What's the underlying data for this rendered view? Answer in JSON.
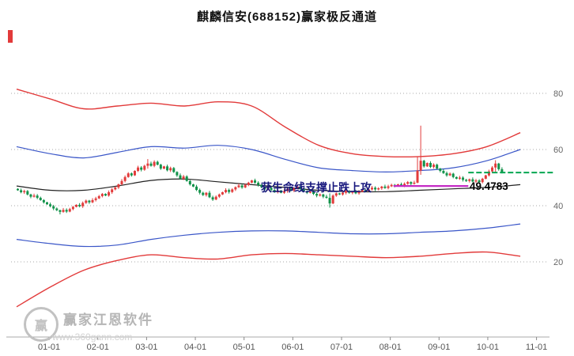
{
  "title": "麒麟信安(688152)赢家极反通道",
  "annotation": {
    "text": "获生命线支撑止跌上攻",
    "price_label": "49.4783"
  },
  "watermark": {
    "logo_char": "赢",
    "brand": "赢家江恩软件",
    "url": "www.360gann.com"
  },
  "axis": {
    "y_ticks": [
      80,
      60,
      40,
      20
    ],
    "x_ticks": [
      {
        "label": "01-01",
        "idx": 10
      },
      {
        "label": "02-01",
        "idx": 25
      },
      {
        "label": "03-01",
        "idx": 40
      },
      {
        "label": "04-01",
        "idx": 55
      },
      {
        "label": "05-01",
        "idx": 70
      },
      {
        "label": "06-01",
        "idx": 85
      },
      {
        "label": "07-01",
        "idx": 100
      },
      {
        "label": "08-01",
        "idx": 115
      },
      {
        "label": "09-01",
        "idx": 130
      },
      {
        "label": "10-01",
        "idx": 145
      },
      {
        "label": "11-01",
        "idx": 160
      }
    ]
  },
  "chart_data": {
    "type": "candlestick",
    "symbol": "麒麟信安",
    "code": "688152",
    "channel_name": "赢家极反通道",
    "title": "麒麟信安(688152)赢家极反通道",
    "ylim": [
      0,
      90
    ],
    "grid": "horizontal-dotted",
    "colors": {
      "up_candle": "#e23b3b",
      "down_candle": "#12924a",
      "outer_channel": "#e23a3a",
      "inner_channel": "#3a56c8",
      "lifeline": "#222222",
      "support_line": "#c52bc5",
      "target_line": "#00a651"
    },
    "closes": [
      45.5,
      44.8,
      45.2,
      44.0,
      43.2,
      43.6,
      42.8,
      42.0,
      41.2,
      40.5,
      39.8,
      39.0,
      38.4,
      37.8,
      38.5,
      37.9,
      38.8,
      39.6,
      40.3,
      39.8,
      41.0,
      41.8,
      41.2,
      42.0,
      42.6,
      43.4,
      44.2,
      43.6,
      44.8,
      45.8,
      46.5,
      47.6,
      48.8,
      50.2,
      51.5,
      50.8,
      52.4,
      53.6,
      52.8,
      54.2,
      55.0,
      54.2,
      55.6,
      54.6,
      53.2,
      54.0,
      52.6,
      53.4,
      52.0,
      50.8,
      49.6,
      50.4,
      48.8,
      47.6,
      46.8,
      45.6,
      44.6,
      43.8,
      44.6,
      43.0,
      42.2,
      43.2,
      44.0,
      44.8,
      45.6,
      44.9,
      45.8,
      46.6,
      47.2,
      46.5,
      47.4,
      48.2,
      49.0,
      48.2,
      47.4,
      46.6,
      45.8,
      46.4,
      45.6,
      44.8,
      45.4,
      44.6,
      45.2,
      46.0,
      45.4,
      46.2,
      46.8,
      46.0,
      45.2,
      44.6,
      45.0,
      44.2,
      43.6,
      44.0,
      43.2,
      42.8,
      40.8,
      43.6,
      44.4,
      44.0,
      44.6,
      45.2,
      44.6,
      45.0,
      44.4,
      45.0,
      45.6,
      45.2,
      45.8,
      46.4,
      45.8,
      46.2,
      46.8,
      46.3,
      46.9,
      47.4,
      47.0,
      47.6,
      47.2,
      47.8,
      48.4,
      47.8,
      48.2,
      52.5,
      56.0,
      54.0,
      55.2,
      53.8,
      54.6,
      53.2,
      52.4,
      51.6,
      50.8,
      51.4,
      50.2,
      49.6,
      50.0,
      49.2,
      48.8,
      49.4,
      48.6,
      49.0,
      48.4,
      49.6,
      50.8,
      52.2,
      53.6,
      55.0,
      53.0,
      51.8
    ],
    "wick_overrides": {
      "13": [
        38.6,
        36.9
      ],
      "40": [
        56.6,
        53.2
      ],
      "96": [
        44.4,
        39.3
      ],
      "123": [
        57.5,
        48.0
      ],
      "124": [
        68.5,
        51.0
      ],
      "147": [
        56.2,
        52.0
      ]
    },
    "lines": {
      "upper_red": {
        "color": "#e23a3a",
        "width": 1.4,
        "values": [
          81.5,
          78,
          74.5,
          75.5,
          76.5,
          75.5,
          77,
          75.5,
          68,
          61.5,
          58.5,
          57.5,
          57.5,
          58.5,
          61,
          66
        ]
      },
      "upper_blue": {
        "color": "#3a56c8",
        "width": 1.2,
        "values": [
          61,
          58.5,
          57,
          59,
          61,
          60.5,
          61.5,
          60,
          56.5,
          53.5,
          52.5,
          52,
          52.5,
          53.5,
          56,
          60
        ]
      },
      "mid_black": {
        "color": "#222222",
        "width": 1.2,
        "values": [
          47,
          45.5,
          45.5,
          47,
          49,
          49.5,
          48.5,
          47.5,
          46.5,
          45.5,
          45,
          45,
          45.5,
          46,
          46.5,
          47.5
        ]
      },
      "lower_blue": {
        "color": "#3a56c8",
        "width": 1.2,
        "values": [
          28,
          26.5,
          25.5,
          26,
          28,
          29.5,
          30.5,
          31,
          31,
          30.5,
          30,
          30,
          30.5,
          31,
          32,
          33.5
        ]
      },
      "lower_red": {
        "color": "#e23a3a",
        "width": 1.4,
        "values": [
          4,
          11,
          17,
          20.5,
          22.5,
          21.5,
          21,
          22.5,
          23,
          22.5,
          22,
          21.5,
          22,
          23,
          23.5,
          22
        ]
      }
    },
    "overlays": {
      "support_line": {
        "price": 47.0,
        "from_idx": 116,
        "to_idx": 139,
        "color": "#c52bc5"
      },
      "target_line": {
        "price": 51.8,
        "from_idx": 139,
        "to_edge": true,
        "color": "#00a651"
      }
    }
  }
}
